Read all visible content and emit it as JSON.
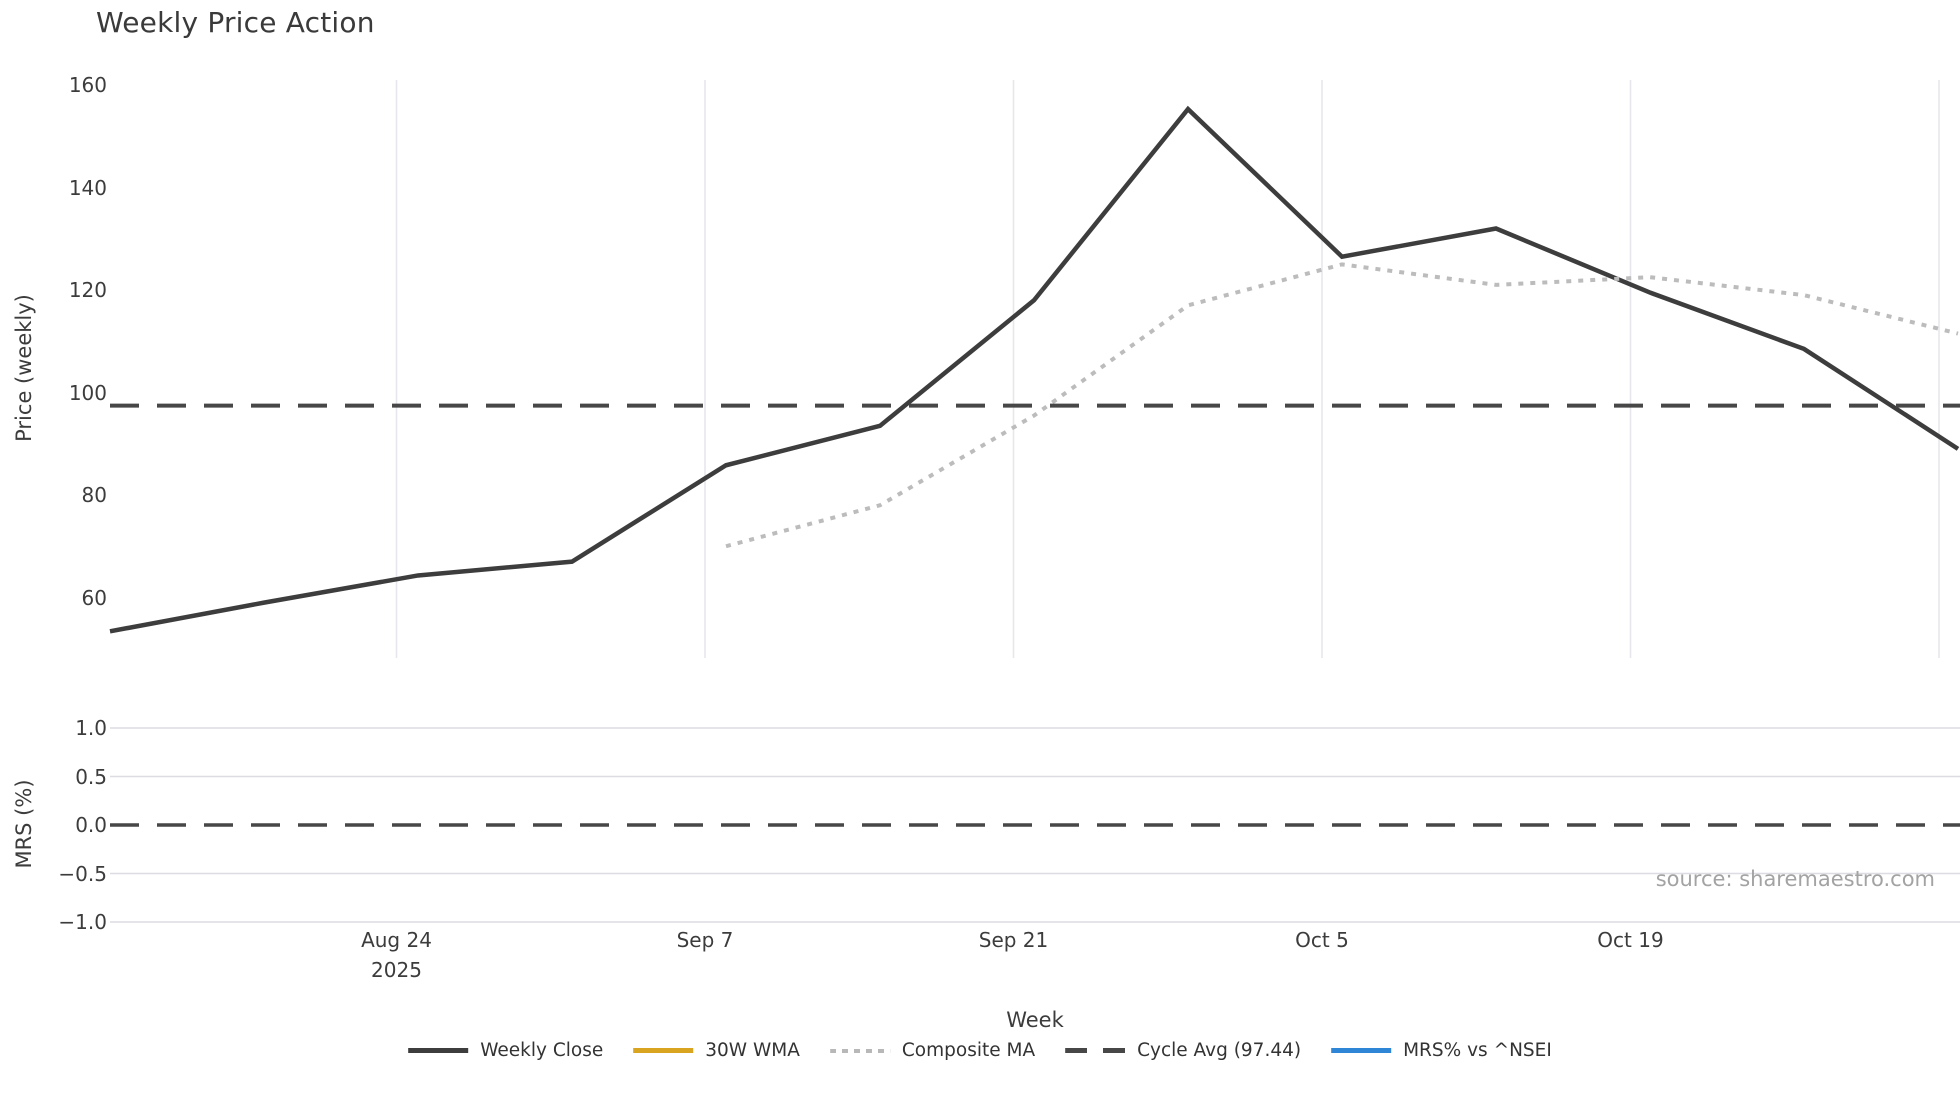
{
  "title": "Weekly Price Action",
  "source": "source: sharemaestro.com",
  "upper_axis": {
    "ylabel": "Price (weekly)",
    "yticks": [
      "160",
      "140",
      "120",
      "100",
      "80",
      "60"
    ],
    "ytick_values": [
      160,
      140,
      120,
      100,
      80,
      60
    ]
  },
  "lower_axis": {
    "ylabel": "MRS (%)",
    "yticks": [
      "1.0",
      "0.5",
      "0.0",
      "−0.5",
      "−1.0"
    ],
    "ytick_values": [
      1.0,
      0.5,
      0.0,
      -0.5,
      -1.0
    ]
  },
  "xaxis": {
    "label": "Week",
    "ticks": [
      "Aug 24",
      "Sep 7",
      "Sep 21",
      "Oct 5",
      "Oct 19"
    ],
    "year_subtick": "2025"
  },
  "legend": [
    {
      "label": "Weekly Close",
      "style": "solid",
      "color": "#3d3d3d"
    },
    {
      "label": "30W WMA",
      "style": "solid",
      "color": "#d9a521"
    },
    {
      "label": "Composite MA",
      "style": "dotted",
      "color": "#b8b8b8"
    },
    {
      "label": "Cycle Avg (97.44)",
      "style": "dashed",
      "color": "#474747"
    },
    {
      "label": "MRS% vs ^NSEI",
      "style": "solid",
      "color": "#2f86d6"
    }
  ],
  "chart_data": [
    {
      "type": "line",
      "panel": "price",
      "title": "Weekly Price Action",
      "xlabel": "Week",
      "ylabel": "Price (weekly)",
      "x": [
        "Aug 11",
        "Aug 18",
        "Aug 25",
        "Sep 1",
        "Sep 8",
        "Sep 15",
        "Sep 22",
        "Sep 29",
        "Oct 6",
        "Oct 13",
        "Oct 20",
        "Oct 27",
        "Nov 3"
      ],
      "x_year": "2025",
      "xtick_dates_shown": [
        "Aug 24",
        "Sep 7",
        "Sep 21",
        "Oct 5",
        "Oct 19"
      ],
      "ylim": [
        48,
        161
      ],
      "grid": "vertical-only",
      "legend_position": "bottom-center",
      "series": [
        {
          "name": "Weekly Close",
          "color": "#3d3d3d",
          "style": "solid",
          "values": [
            53.4,
            59.0,
            64.3,
            67.0,
            85.8,
            93.5,
            118.0,
            155.3,
            126.5,
            132.0,
            119.5,
            108.5,
            89.0
          ]
        },
        {
          "name": "Composite MA",
          "color": "#bcbcbc",
          "style": "dotted",
          "values": [
            null,
            null,
            null,
            null,
            70.0,
            78.0,
            95.5,
            117.0,
            125.0,
            121.0,
            122.5,
            119.0,
            111.5
          ]
        },
        {
          "name": "30W WMA",
          "color": "#d9a521",
          "style": "solid",
          "values": [
            null,
            null,
            null,
            null,
            null,
            null,
            null,
            null,
            null,
            null,
            null,
            null,
            null
          ]
        },
        {
          "name": "Cycle Avg",
          "color": "#474747",
          "style": "dashed",
          "constant": 97.44
        }
      ]
    },
    {
      "type": "line",
      "panel": "mrs",
      "ylabel": "MRS (%)",
      "ylim": [
        -1.05,
        1.05
      ],
      "grid": "horizontal-only",
      "series": [
        {
          "name": "MRS% vs ^NSEI",
          "color": "#2f86d6",
          "style": "solid",
          "values": []
        },
        {
          "name": "Zero line",
          "color": "#474747",
          "style": "dashed",
          "constant": 0.0
        }
      ]
    }
  ]
}
